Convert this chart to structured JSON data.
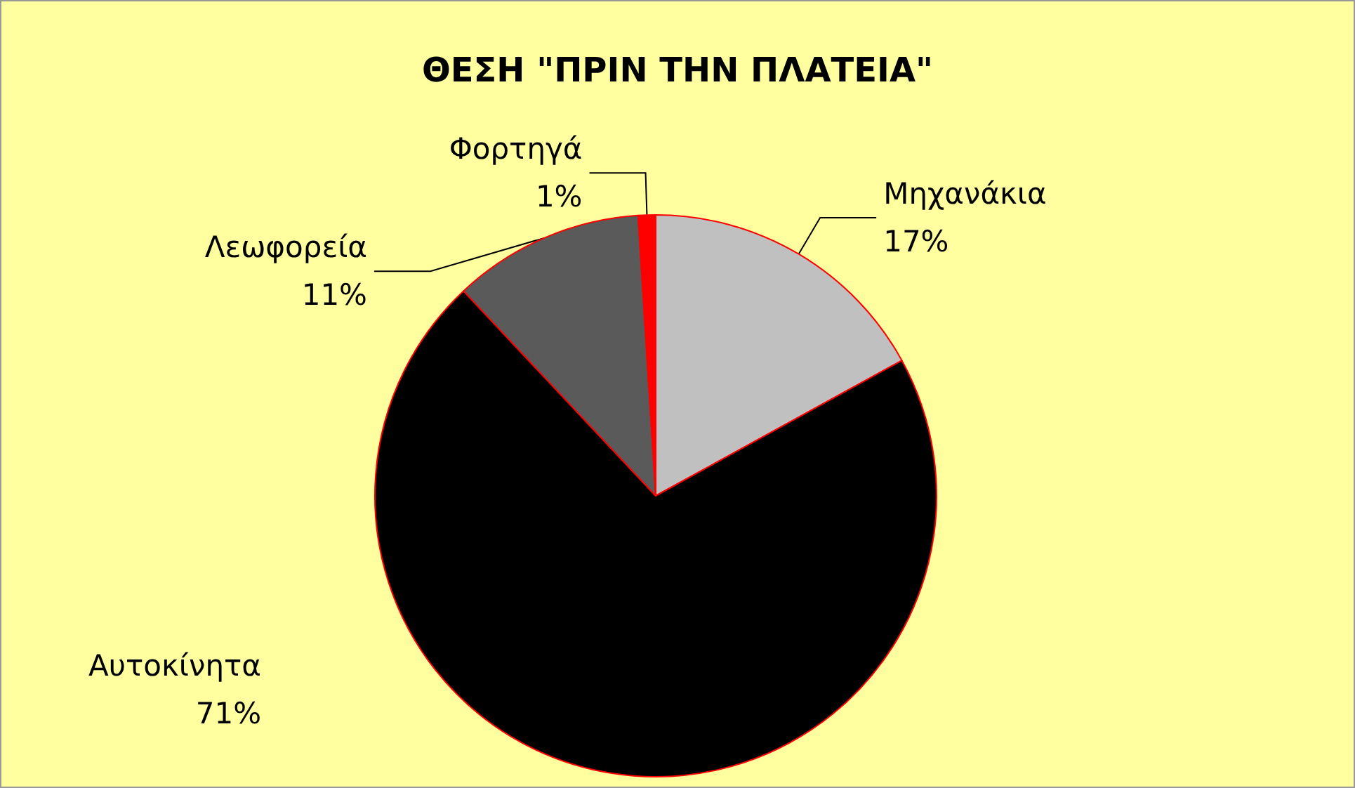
{
  "chart_data": {
    "type": "pie",
    "title": "ΘΕΣΗ \"ΠΡΙΝ ΤΗΝ ΠΛΑΤΕΙΑ\"",
    "categories": [
      "Μηχανάκια",
      "Αυτοκίνητα",
      "Λεωφορεία",
      "Φορτηγά"
    ],
    "values": [
      17,
      71,
      11,
      1
    ],
    "value_labels": [
      "17%",
      "71%",
      "11%",
      "1%"
    ],
    "colors": [
      "#c0c0c0",
      "#000000",
      "#5a5a5a",
      "#ff0000"
    ],
    "legend": false
  }
}
